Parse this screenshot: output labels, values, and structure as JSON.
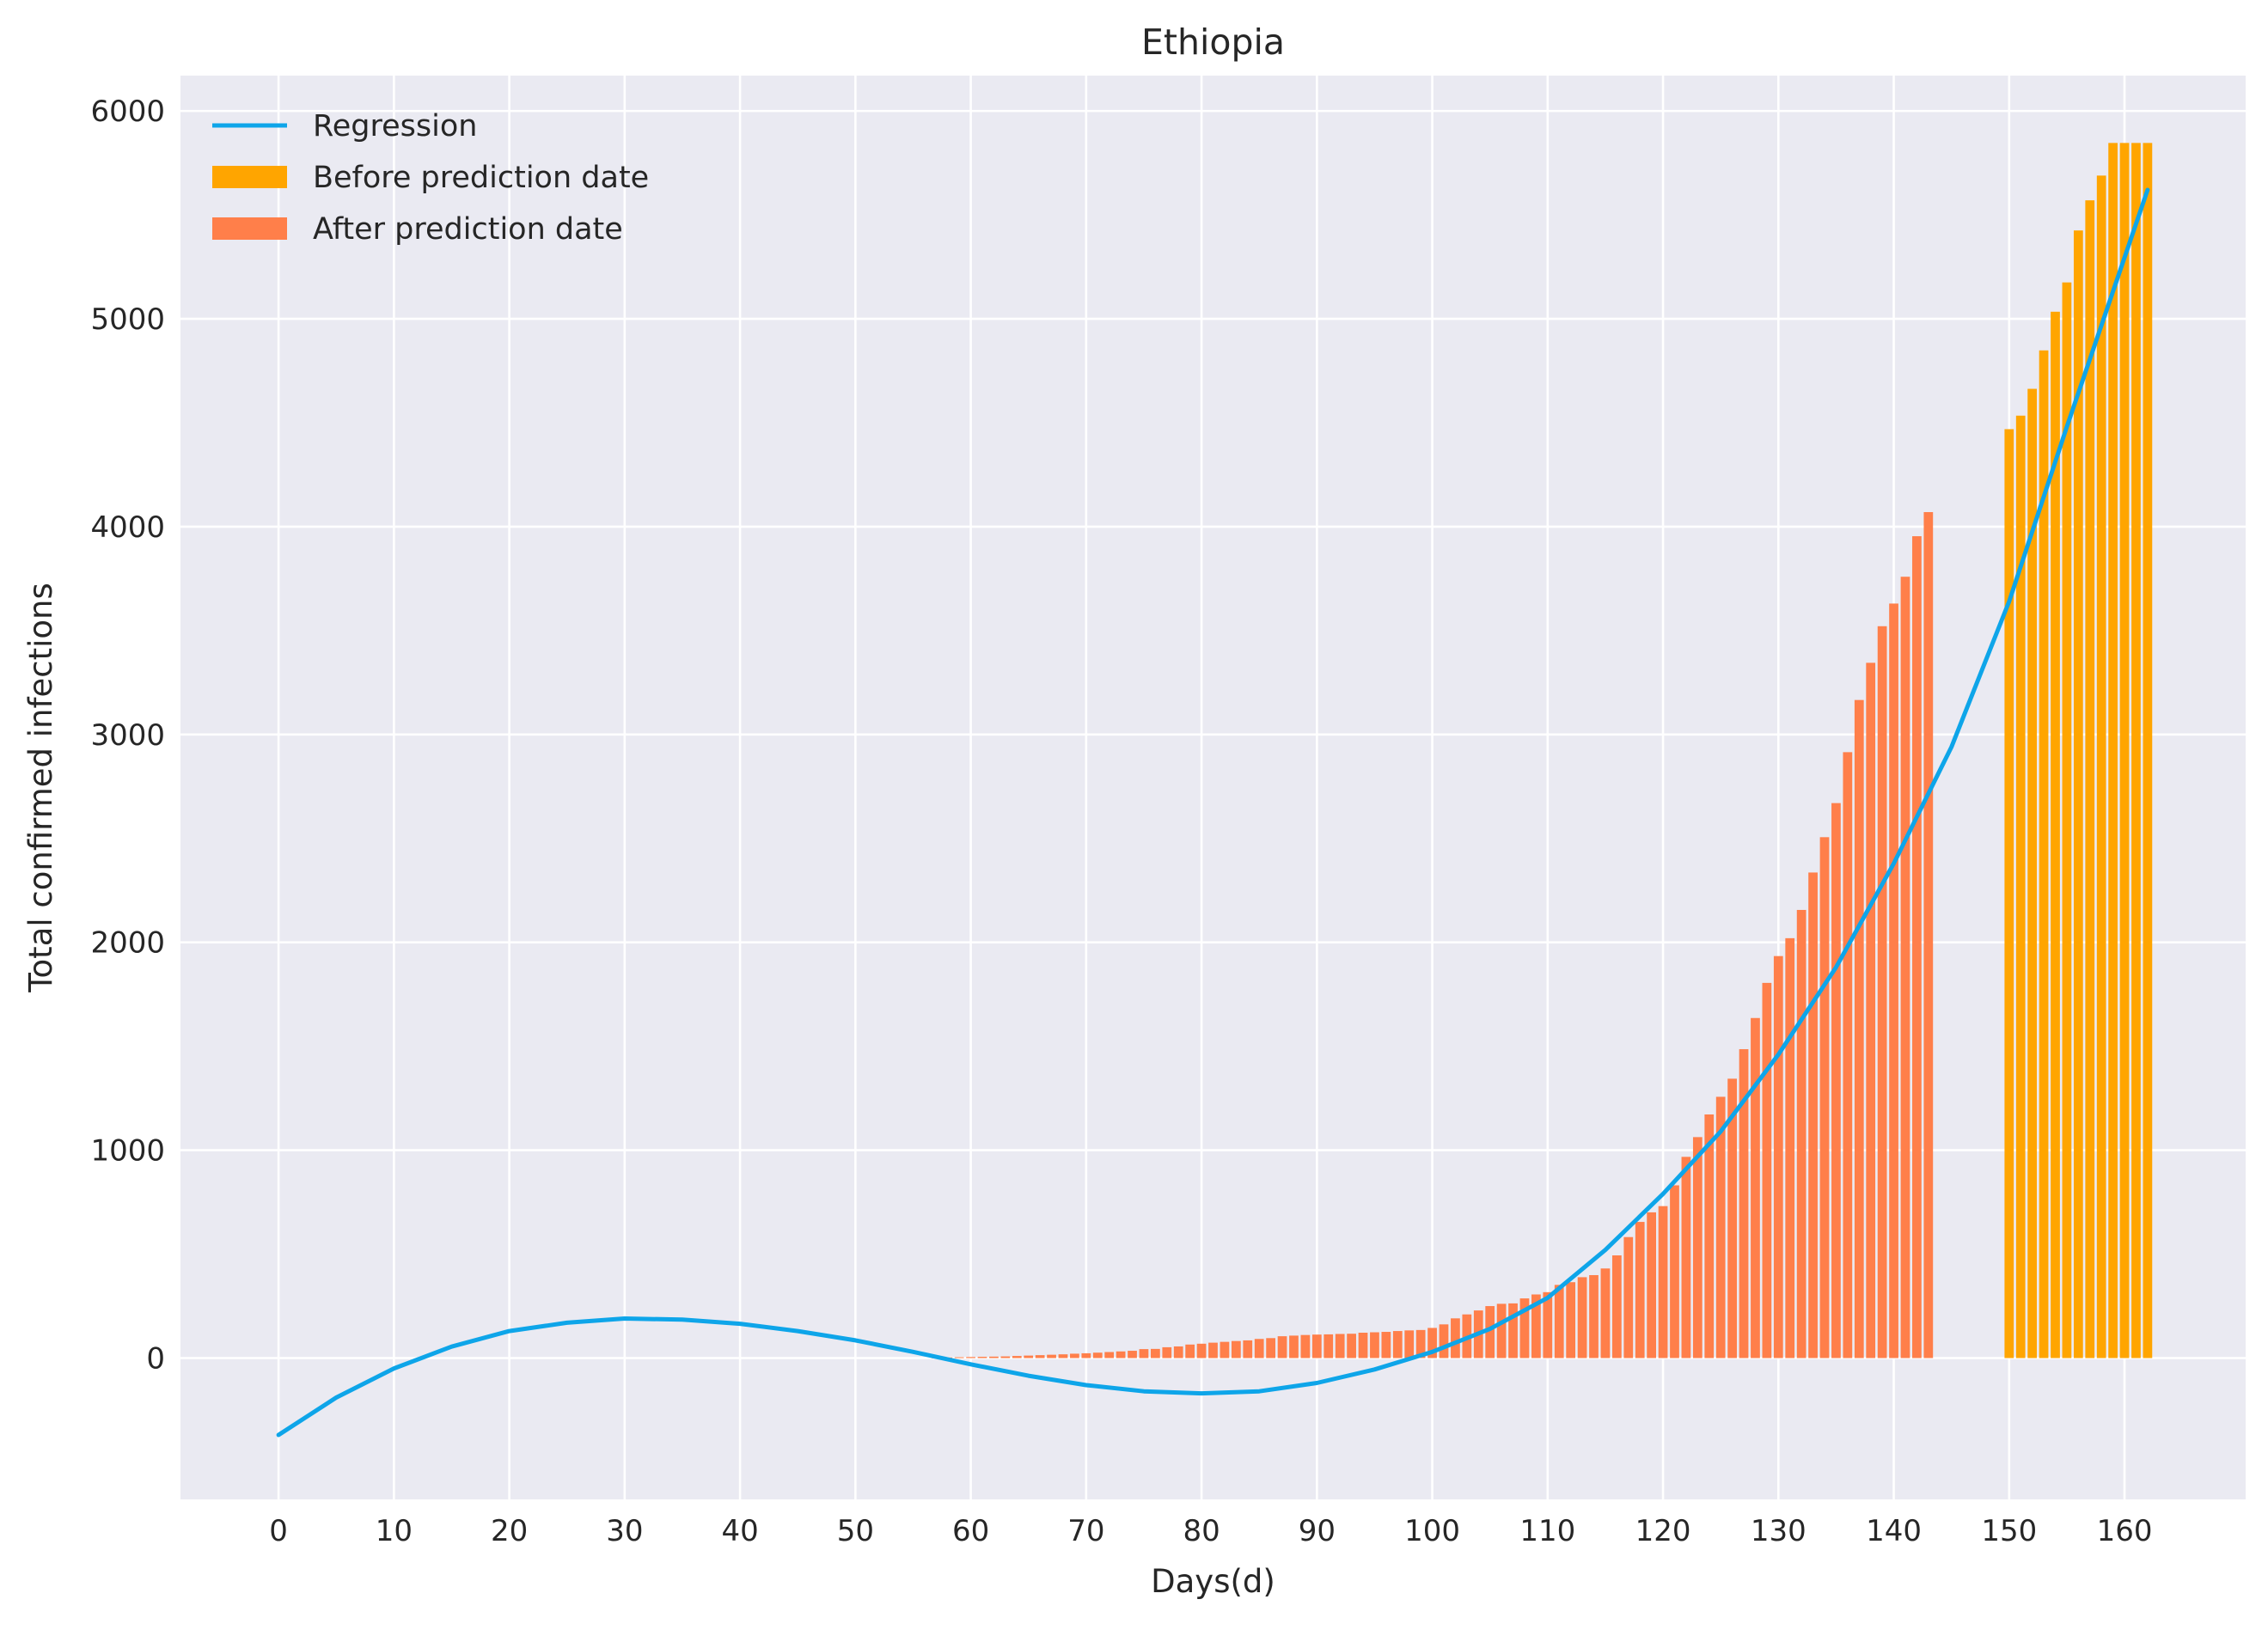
{
  "chart_data": {
    "type": "bar",
    "title": "Ethiopia",
    "xlabel": "Days(d)",
    "ylabel": "Total confirmed infections",
    "xlim": [
      -8.5,
      170.5
    ],
    "ylim": [
      -680,
      6170
    ],
    "x_ticks": [
      0,
      10,
      20,
      30,
      40,
      50,
      60,
      70,
      80,
      90,
      100,
      110,
      120,
      130,
      140,
      150,
      160
    ],
    "y_ticks": [
      0,
      1000,
      2000,
      3000,
      4000,
      5000,
      6000
    ],
    "grid": true,
    "legend_position": "top-left",
    "legend": [
      {
        "label": "Regression",
        "kind": "line",
        "color": "#0ea5e9"
      },
      {
        "label": "Before prediction date",
        "kind": "bar",
        "color": "#ffa500"
      },
      {
        "label": "After prediction date",
        "kind": "bar",
        "color": "#ff7f4a"
      }
    ],
    "series": [
      {
        "name": "After prediction date",
        "color": "#ff7f4a",
        "x_start": 57,
        "values": [
          1,
          3,
          4,
          5,
          6,
          7,
          8,
          10,
          12,
          14,
          16,
          18,
          21,
          23,
          26,
          29,
          32,
          35,
          43,
          44,
          52,
          56,
          65,
          69,
          74,
          78,
          82,
          85,
          92,
          96,
          105,
          108,
          111,
          113,
          114,
          116,
          117,
          122,
          124,
          126,
          130,
          133,
          135,
          145,
          162,
          191,
          210,
          229,
          250,
          261,
          263,
          287,
          306,
          317,
          352,
          365,
          389,
          399,
          431,
          494,
          582,
          655,
          701,
          731,
          831,
          968,
          1063,
          1172,
          1257,
          1344,
          1486,
          1636,
          1805,
          1934,
          2020,
          2156,
          2336,
          2506,
          2670,
          2915,
          3166,
          3345,
          3521,
          3630,
          3759,
          3954,
          4070
        ]
      },
      {
        "name": "Before prediction date",
        "color": "#ffa500",
        "x_start": 150,
        "values": [
          4469,
          4534,
          4663,
          4848,
          5034,
          5175,
          5425,
          5570,
          5689,
          5846,
          5846,
          5846,
          5846
        ]
      }
    ],
    "regression": {
      "name": "Regression",
      "color": "#0ea5e9",
      "x": [
        0,
        5,
        10,
        15,
        20,
        25,
        30,
        35,
        40,
        45,
        50,
        55,
        60,
        65,
        70,
        75,
        80,
        85,
        90,
        95,
        100,
        105,
        110,
        115,
        120,
        125,
        130,
        135,
        140,
        145,
        150,
        155,
        162
      ],
      "y": [
        -370,
        -190,
        -50,
        55,
        130,
        170,
        190,
        185,
        165,
        130,
        85,
        30,
        -30,
        -85,
        -130,
        -160,
        -170,
        -160,
        -120,
        -55,
        30,
        140,
        290,
        520,
        790,
        1090,
        1460,
        1880,
        2380,
        2940,
        3640,
        4480,
        5620
      ]
    }
  }
}
